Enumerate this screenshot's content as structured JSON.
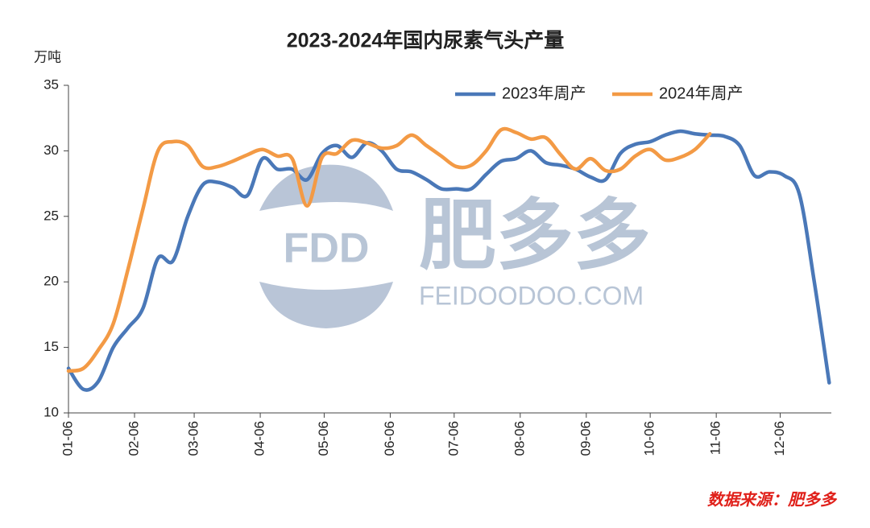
{
  "chart_data": {
    "type": "line",
    "title": "2023-2024年国内尿素气头产量",
    "y_label": "万吨",
    "source": "数据来源：肥多多",
    "watermark": {
      "logo": "FDD",
      "name": "肥多多",
      "site": "FEIDOODOO.COM"
    },
    "x": [
      0,
      7,
      14,
      21,
      28,
      35,
      42,
      49,
      56,
      63,
      70,
      77,
      84,
      91,
      98,
      105,
      112,
      119,
      126,
      133,
      140,
      147,
      154,
      161,
      168,
      175,
      182,
      189,
      196,
      203,
      210,
      217,
      224,
      231,
      238,
      245,
      252,
      259,
      266,
      273,
      280,
      287,
      294,
      301,
      308,
      315,
      322,
      329,
      336,
      343,
      350,
      357
    ],
    "xlim": [
      0,
      358
    ],
    "xticks": [
      {
        "value": 0,
        "label": "01-06"
      },
      {
        "value": 31,
        "label": "02-06"
      },
      {
        "value": 59,
        "label": "03-06"
      },
      {
        "value": 90,
        "label": "04-06"
      },
      {
        "value": 120,
        "label": "05-06"
      },
      {
        "value": 151,
        "label": "06-06"
      },
      {
        "value": 181,
        "label": "07-06"
      },
      {
        "value": 212,
        "label": "08-06"
      },
      {
        "value": 243,
        "label": "09-06"
      },
      {
        "value": 273,
        "label": "10-06"
      },
      {
        "value": 304,
        "label": "11-06"
      },
      {
        "value": 334,
        "label": "12-06"
      }
    ],
    "ylim": [
      10,
      35
    ],
    "yticks": [
      10,
      15,
      20,
      25,
      30,
      35
    ],
    "legend": "top-right",
    "series": [
      {
        "name": "2023年周产",
        "color": "#4a78b8",
        "values": [
          13.4,
          11.8,
          12.4,
          15,
          16.5,
          18,
          21.8,
          21.6,
          25,
          27.4,
          27.6,
          27.2,
          26.6,
          29.4,
          28.6,
          28.6,
          27.8,
          29.8,
          30.4,
          29.5,
          30.6,
          30,
          28.6,
          28.4,
          27.8,
          27.1,
          27.1,
          27.1,
          28.2,
          29.2,
          29.4,
          30,
          29.1,
          28.9,
          28.6,
          28,
          27.8,
          29.8,
          30.5,
          30.7,
          31.2,
          31.5,
          31.3,
          31.2,
          31.1,
          30.4,
          28.1,
          28.4,
          28.1,
          26.7,
          20,
          12.3
        ]
      },
      {
        "name": "2024年周产",
        "color": "#f39a45",
        "values": [
          13.2,
          13.4,
          14.8,
          16.8,
          21,
          25.6,
          30,
          30.7,
          30.4,
          28.8,
          28.8,
          29.2,
          29.7,
          30.1,
          29.6,
          29.4,
          25.8,
          29.5,
          29.8,
          30.8,
          30.6,
          30.2,
          30.4,
          31.2,
          30.4,
          29.6,
          28.8,
          28.9,
          30,
          31.6,
          31.4,
          30.9,
          31,
          29.7,
          28.6,
          29.4,
          28.5,
          28.6,
          29.6,
          30.1,
          29.3,
          29.5,
          30.1,
          31.3,
          null,
          null,
          null,
          null,
          null,
          null,
          null,
          null
        ]
      }
    ]
  }
}
